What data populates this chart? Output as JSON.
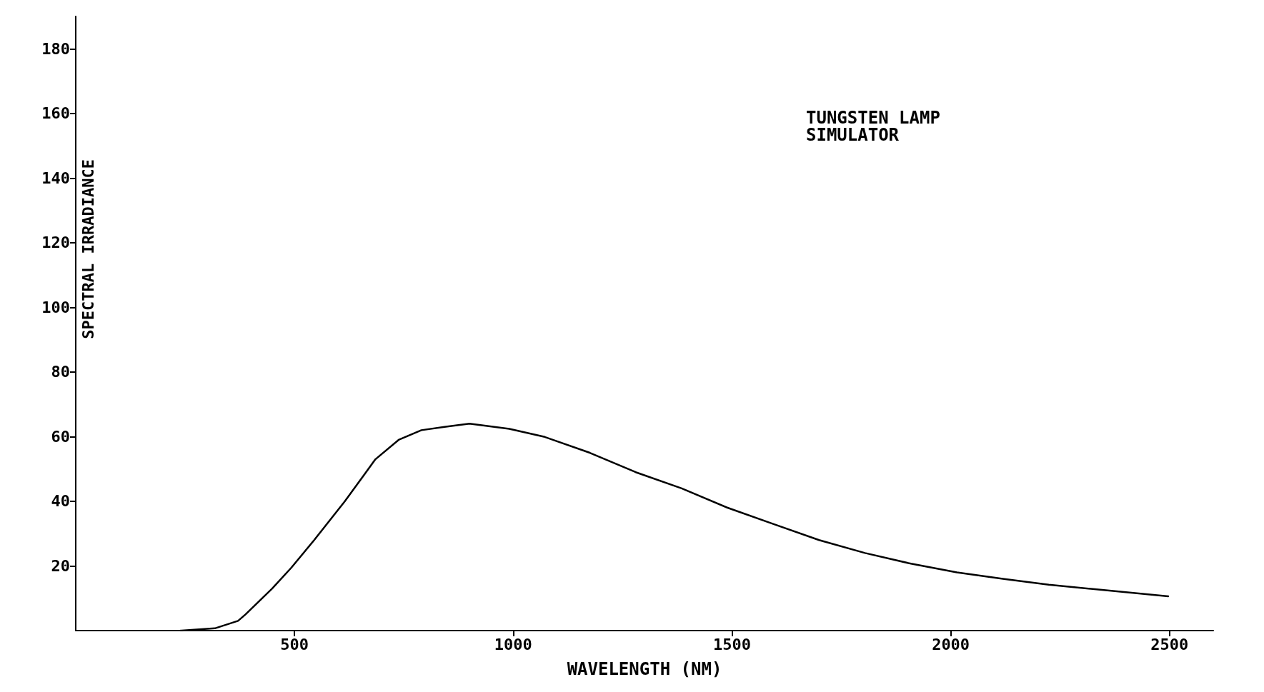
{
  "chart_data": {
    "type": "line",
    "xlabel": "WAVELENGTH (NM)",
    "ylabel": "SPECTRAL IRRADIANCE",
    "annotations": [
      "TUNGSTEN LAMP\nSIMULATOR"
    ],
    "series": [
      {
        "color": "#000000",
        "x": [
          240,
          318,
          371,
          388,
          449,
          493,
          545,
          615,
          685,
          738,
          790,
          843,
          900,
          991,
          1070,
          1175,
          1280,
          1385,
          1490,
          1594,
          1699,
          1804,
          1909,
          2014,
          2119,
          2224,
          2329,
          2497
        ],
        "values": [
          0,
          0.7,
          3,
          5,
          13,
          19.5,
          28,
          40,
          53,
          59,
          62,
          63,
          64,
          62.4,
          60,
          55,
          49,
          44,
          38,
          33,
          28,
          24,
          20.7,
          18,
          16,
          14.2,
          12.8,
          10.6
        ]
      }
    ],
    "xlim": [
      0,
      2600
    ],
    "xticks": [
      500,
      1000,
      1500,
      2000,
      2500
    ],
    "ylim": [
      0,
      190
    ],
    "yticks": [
      20,
      40,
      60,
      80,
      100,
      120,
      140,
      160,
      180
    ],
    "grid": false,
    "marker": "none",
    "line_style": "solid"
  }
}
